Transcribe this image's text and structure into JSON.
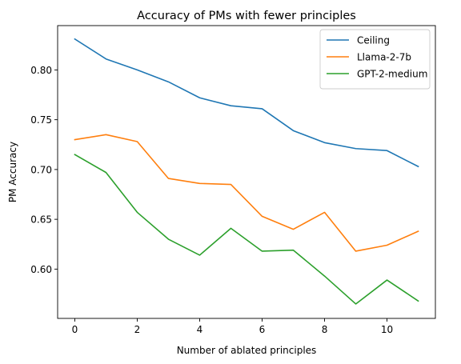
{
  "chart_data": {
    "type": "line",
    "title": "Accuracy of PMs with fewer principles",
    "xlabel": "Number of ablated principles",
    "ylabel": "PM Accuracy",
    "xlim": [
      -0.55,
      11.55
    ],
    "ylim": [
      0.5505,
      0.8445
    ],
    "xticks": [
      0,
      2,
      4,
      6,
      8,
      10
    ],
    "yticks": [
      0.6,
      0.65,
      0.7,
      0.75,
      0.8
    ],
    "ytick_labels": [
      "0.60",
      "0.65",
      "0.70",
      "0.75",
      "0.80"
    ],
    "grid": false,
    "legend_position": "top-right",
    "x": [
      0,
      1,
      2,
      3,
      4,
      5,
      6,
      7,
      8,
      9,
      10,
      11
    ],
    "series": [
      {
        "name": "Ceiling",
        "color": "#1f77b4",
        "values": [
          0.831,
          0.811,
          0.8,
          0.788,
          0.772,
          0.764,
          0.761,
          0.739,
          0.727,
          0.721,
          0.719,
          0.703
        ]
      },
      {
        "name": "Llama-2-7b",
        "color": "#ff7f0e",
        "values": [
          0.73,
          0.735,
          0.728,
          0.691,
          0.686,
          0.685,
          0.653,
          0.64,
          0.657,
          0.618,
          0.624,
          0.638
        ]
      },
      {
        "name": "GPT-2-medium",
        "color": "#2ca02c",
        "values": [
          0.715,
          0.697,
          0.657,
          0.63,
          0.614,
          0.641,
          0.618,
          0.619,
          0.593,
          0.565,
          0.589,
          0.568
        ]
      }
    ]
  }
}
